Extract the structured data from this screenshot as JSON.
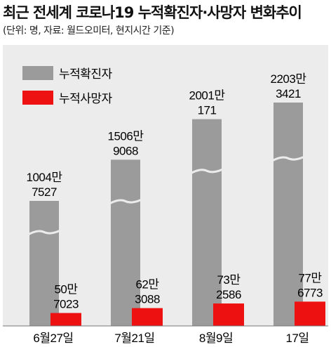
{
  "header": {
    "title": "최근 전세계 코로나19 누적확진자·사망자 변화추이",
    "subtitle": "(단위: 명, 자료: 월드오미터, 현지시간 기준)"
  },
  "legend": [
    {
      "label": "누적확진자",
      "color": "#9b9b9b"
    },
    {
      "label": "누적사망자",
      "color": "#ee1111"
    }
  ],
  "chart_data": {
    "type": "bar",
    "categories": [
      "6월27일",
      "7월21일",
      "8월9일",
      "17일"
    ],
    "series": [
      {
        "name": "누적확진자",
        "values": [
          10047527,
          15069068,
          20010171,
          22033421
        ],
        "labels": [
          [
            "1004만",
            "7527"
          ],
          [
            "1506만",
            "9068"
          ],
          [
            "2001만",
            "171"
          ],
          [
            "2203만",
            "3421"
          ]
        ],
        "color": "#9b9b9b"
      },
      {
        "name": "누적사망자",
        "values": [
          507023,
          623088,
          732586,
          776773
        ],
        "labels": [
          [
            "50만",
            "7023"
          ],
          [
            "62만",
            "3088"
          ],
          [
            "73만",
            "2586"
          ],
          [
            "77만",
            "6773"
          ]
        ],
        "color": "#ee1111"
      }
    ],
    "axis_break": true,
    "grid": false,
    "legend_position": "top-left"
  }
}
